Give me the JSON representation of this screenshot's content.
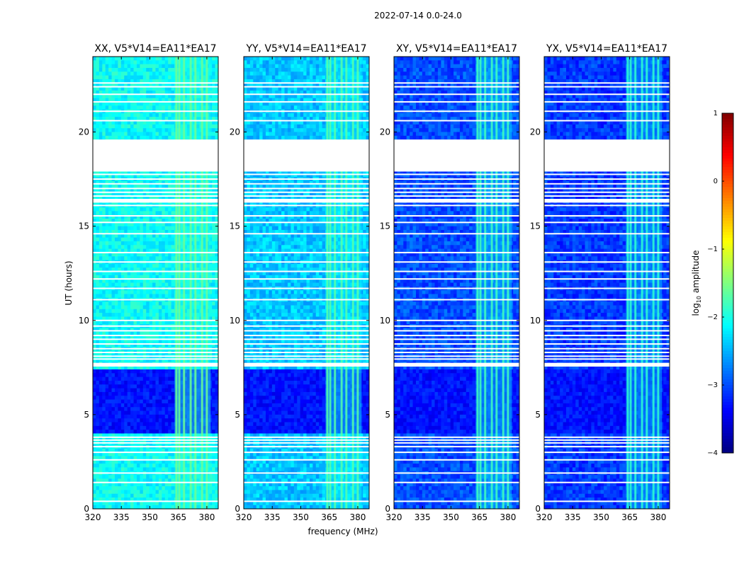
{
  "chart_data": {
    "type": "heatmap",
    "suptitle": "2022-07-14 0.0-24.0",
    "xlabel": "frequency (MHz)",
    "ylabel": "UT (hours)",
    "xlim": [
      320,
      386
    ],
    "ylim": [
      0,
      24
    ],
    "xticks": [
      320,
      335,
      350,
      365,
      380
    ],
    "yticks": [
      0,
      5,
      10,
      15,
      20
    ],
    "panels": [
      {
        "title": "XX, V5*V14=EA11*EA17",
        "base_level": -2.1,
        "rfi_level": -1.6
      },
      {
        "title": "YY, V5*V14=EA11*EA17",
        "base_level": -2.4,
        "rfi_level": -1.7
      },
      {
        "title": "XY, V5*V14=EA11*EA17",
        "base_level": -3.0,
        "rfi_level": -1.8
      },
      {
        "title": "YX, V5*V14=EA11*EA17",
        "base_level": -3.1,
        "rfi_level": -1.9
      }
    ],
    "rfi_band_mhz": [
      363,
      382
    ],
    "rfi_lines_mhz": [
      364,
      365.5,
      368,
      371.5,
      374,
      377.5,
      380
    ],
    "flagged_gap_ut": [
      [
        17.9,
        19.6
      ],
      [
        16.25,
        16.45
      ],
      [
        7.55,
        7.75
      ]
    ],
    "flagged_lines_ut": [
      0.4,
      1.4,
      1.9,
      2.6,
      3.0,
      3.3,
      3.5,
      3.65,
      3.8,
      7.95,
      8.1,
      8.3,
      8.5,
      8.75,
      9.0,
      9.2,
      9.45,
      9.7,
      10.0,
      11.1,
      11.7,
      12.2,
      12.6,
      13.1,
      13.6,
      14.6,
      15.2,
      15.55,
      16.1,
      16.6,
      16.8,
      17.0,
      17.25,
      17.5,
      17.75,
      20.6,
      21.1,
      21.6,
      22.0,
      22.4,
      22.6
    ],
    "rfi_storm_ut": [
      3.95,
      7.5
    ],
    "colorbar": {
      "label": "log10 amplitude",
      "label_main": "log",
      "label_sub": "10",
      "label_rest": " amplitude",
      "ticks": [
        1,
        0,
        -1,
        -2,
        -3,
        -4
      ],
      "tick_labels": [
        "1",
        "0",
        "−1",
        "−2",
        "−3",
        "−4"
      ],
      "range": [
        -4,
        1
      ],
      "colormap": "jet"
    }
  }
}
